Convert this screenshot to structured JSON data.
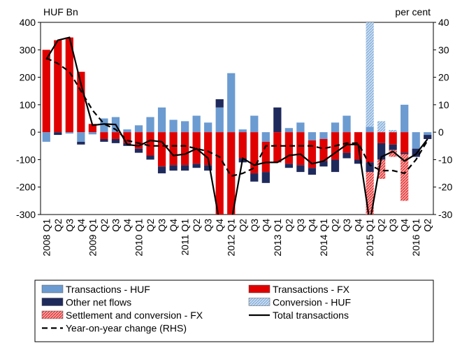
{
  "chart_data": {
    "type": "bar",
    "ylabel": "HUF Bn",
    "y2label": "per cent",
    "categories": [
      "2008 Q1",
      "Q2",
      "Q3",
      "Q4",
      "2009 Q1",
      "Q2",
      "Q3",
      "Q4",
      "2010 Q1",
      "Q2",
      "Q3",
      "Q4",
      "2011 Q1",
      "Q2",
      "Q3",
      "Q4",
      "2012 Q1",
      "Q2",
      "Q3",
      "Q4",
      "2013 Q1",
      "Q2",
      "Q3",
      "Q4",
      "2014 Q1",
      "Q2",
      "Q3",
      "Q4",
      "2015 Q1",
      "Q2",
      "Q3",
      "Q4",
      "2016 Q1",
      "Q2"
    ],
    "ylim": [
      -300,
      400
    ],
    "yticks": [
      -300,
      -200,
      -100,
      0,
      100,
      200,
      300,
      400
    ],
    "y2lim": [
      -30,
      40
    ],
    "y2ticks": [
      -30,
      -20,
      -10,
      0,
      10,
      20,
      30,
      40
    ],
    "series": [
      {
        "name": "Transactions - HUF",
        "color": "#6b9bd1",
        "values": [
          -35,
          0,
          -5,
          -35,
          -8,
          50,
          55,
          10,
          25,
          55,
          90,
          45,
          40,
          60,
          35,
          90,
          215,
          10,
          60,
          -35,
          0,
          15,
          35,
          -30,
          -25,
          35,
          60,
          0,
          20,
          0,
          0,
          100,
          -60,
          -10
        ]
      },
      {
        "name": "Transactions - FX",
        "color": "#e00000",
        "values": [
          300,
          335,
          345,
          220,
          30,
          -25,
          -25,
          -40,
          -60,
          -85,
          -125,
          -120,
          -120,
          -115,
          -120,
          -330,
          -330,
          -95,
          -150,
          -110,
          -110,
          -115,
          -120,
          -100,
          -80,
          -100,
          -75,
          -100,
          -110,
          -40,
          -45,
          -75,
          0,
          0
        ]
      },
      {
        "name": "Other net flows",
        "color": "#1f2a5c",
        "values": [
          0,
          -10,
          0,
          -10,
          0,
          -10,
          -15,
          -10,
          -15,
          -15,
          -25,
          -20,
          -20,
          -15,
          -20,
          30,
          0,
          -15,
          -30,
          -40,
          90,
          -15,
          -25,
          -25,
          -20,
          -45,
          -20,
          -15,
          -35,
          -60,
          -20,
          -5,
          -30,
          -15
        ]
      },
      {
        "name": "Conversion - HUF",
        "color": "#c6dbf0",
        "pattern": true,
        "values": [
          0,
          0,
          0,
          0,
          0,
          0,
          0,
          0,
          0,
          0,
          0,
          0,
          0,
          0,
          0,
          0,
          0,
          0,
          0,
          0,
          0,
          0,
          0,
          0,
          0,
          0,
          0,
          0,
          400,
          40,
          8,
          0,
          0,
          0
        ]
      },
      {
        "name": "Settlement and conversion - FX",
        "color": "#f4a0a0",
        "pattern": true,
        "values": [
          0,
          0,
          0,
          0,
          0,
          0,
          0,
          0,
          0,
          0,
          0,
          0,
          0,
          0,
          0,
          0,
          0,
          0,
          0,
          0,
          0,
          0,
          0,
          0,
          0,
          0,
          0,
          0,
          -160,
          -70,
          -25,
          -170,
          0,
          0
        ]
      },
      {
        "name": "Total transactions",
        "type": "line",
        "color": "#000000",
        "values": [
          265,
          335,
          345,
          175,
          25,
          30,
          28,
          -45,
          -50,
          -30,
          -35,
          -85,
          -80,
          -60,
          -95,
          -330,
          -330,
          -95,
          -120,
          -110,
          -110,
          -85,
          -80,
          -115,
          -105,
          -75,
          -45,
          -45,
          -330,
          -90,
          -70,
          -105,
          -80,
          -25
        ]
      },
      {
        "name": "Year-on-year change (RHS)",
        "type": "line",
        "dashed": true,
        "axis": "y2",
        "color": "#000000",
        "values": [
          27,
          25,
          22,
          15,
          8,
          3,
          1,
          -3,
          -4,
          -5,
          -5,
          -5,
          -5,
          -6,
          -7,
          -9,
          -16,
          -15,
          -13,
          -5,
          -5,
          -5,
          -5,
          -5,
          -6,
          -5,
          -4,
          -4,
          -12,
          -14,
          -14,
          -15,
          -10,
          -3
        ]
      }
    ]
  }
}
